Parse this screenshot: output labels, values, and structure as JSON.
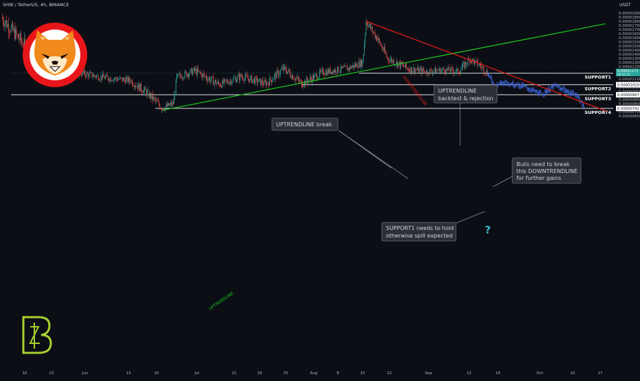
{
  "header": {
    "symbol": "SHIB / TetherUS, 4h, BINANCE",
    "currency": "USDT"
  },
  "colors": {
    "background": "#0c0e15",
    "candle_up": "#26a69a",
    "candle_down": "#ef5350",
    "uptrend": "#19c21c",
    "downtrend": "#e21b1b",
    "support": "#e6e6e6",
    "projection": "#3a5fcf",
    "question": "#3fb6c8",
    "logo_lime": "#a8d22e"
  },
  "chart_data": {
    "type": "candlestick",
    "title": "SHIB / TetherUS, 4h, BINANCE",
    "y_unit": "USDT",
    "ylim": [
      6.1e-06,
      1.93e-05
    ],
    "x_ticks": [
      "16",
      "23",
      "Jun",
      "13",
      "20",
      "Jul",
      "11",
      "18",
      "25",
      "Aug",
      "8",
      "15",
      "22",
      "Sep",
      "12",
      "19",
      "Oct",
      "10",
      "17"
    ],
    "y_ticks": [
      "0.00001900",
      "0.00001850",
      "0.00001800",
      "0.00001750",
      "0.00001700",
      "0.00001650",
      "0.00001600",
      "0.00001550",
      "0.00001500",
      "0.00001450",
      "0.00001400",
      "0.00001350",
      "0.00001300",
      "0.00001250",
      "0.00001200",
      "0.00001150",
      "0.00001100",
      "0.00001050",
      "0.00001000",
      "0.00000950",
      "0.00000900",
      "0.00000850",
      "0.00000800",
      "0.00000750",
      "0.00000700",
      "0.00000650"
    ],
    "last_price": {
      "close": "0.00001173",
      "badge_mid": "00:25:35",
      "low_label": "0.00001169"
    },
    "anchors": [
      {
        "date": "May 13",
        "price": 1.85e-05
      },
      {
        "date": "May 18",
        "price": 1.1e-05
      },
      {
        "date": "May 25",
        "price": 1.18e-05
      },
      {
        "date": "Jun 1",
        "price": 1.12e-05
      },
      {
        "date": "Jun 9",
        "price": 1.08e-05
      },
      {
        "date": "Jun 14",
        "price": 9.2e-06
      },
      {
        "date": "Jun 18",
        "price": 7.4e-06
      },
      {
        "date": "Jun 21",
        "price": 8e-06
      },
      {
        "date": "Jun 22",
        "price": 1.12e-05
      },
      {
        "date": "Jun 27",
        "price": 1.2e-05
      },
      {
        "date": "Jul 4",
        "price": 1.03e-05
      },
      {
        "date": "Jul 10",
        "price": 1.13e-05
      },
      {
        "date": "Jul 17",
        "price": 1.04e-05
      },
      {
        "date": "Jul 22",
        "price": 1.23e-05
      },
      {
        "date": "Jul 27",
        "price": 1.04e-05
      },
      {
        "date": "Aug 2",
        "price": 1.18e-05
      },
      {
        "date": "Aug 9",
        "price": 1.23e-05
      },
      {
        "date": "Aug 13",
        "price": 1.3e-05
      },
      {
        "date": "Aug 14",
        "price": 1.8e-05
      },
      {
        "date": "Aug 17",
        "price": 1.6e-05
      },
      {
        "date": "Aug 20",
        "price": 1.35e-05
      },
      {
        "date": "Aug 26",
        "price": 1.22e-05
      },
      {
        "date": "Aug 31",
        "price": 1.19e-05
      },
      {
        "date": "Sep 5",
        "price": 1.21e-05
      },
      {
        "date": "Sep 9",
        "price": 1.19e-05
      },
      {
        "date": "Sep 12",
        "price": 1.34e-05
      },
      {
        "date": "Sep 15",
        "price": 1.26e-05
      },
      {
        "date": "Sep 17",
        "price": 1.17e-05
      }
    ],
    "projection": [
      {
        "date": "Sep 17",
        "price": 1.17e-05
      },
      {
        "date": "Sep 19",
        "price": 1.02e-05
      },
      {
        "date": "Sep 22",
        "price": 1.06e-05
      },
      {
        "date": "Sep 27",
        "price": 1.01e-05
      },
      {
        "date": "Oct 2",
        "price": 9.1e-06
      },
      {
        "date": "Oct 6",
        "price": 1.02e-05
      },
      {
        "date": "Oct 10",
        "price": 9.3e-06
      },
      {
        "date": "Oct 12",
        "price": 9.1e-06
      },
      {
        "date": "Oct 14",
        "price": 7.5e-06
      }
    ],
    "support_levels": [
      {
        "name": "SUPPORT1",
        "price": 1.169e-05,
        "price_label": "0.00001169",
        "start_date": "Aug 12"
      },
      {
        "name": "SUPPORT2",
        "price": 1.029e-05,
        "price_label": "0.00001029",
        "start_date": "Jul 27"
      },
      {
        "name": "SUPPORT3",
        "price": 9.07e-06,
        "price_label": "0.00000907",
        "start_date": "May 13"
      },
      {
        "name": "SUPPORT4",
        "price": 7.42e-06,
        "price_label": "0.00000742",
        "start_date": "Jun 16"
      }
    ],
    "trendlines": [
      {
        "name": "UPTRENDLINE",
        "from": {
          "date": "Jun 18",
          "price": 7.2e-06
        },
        "to": {
          "date": "Oct 20",
          "price": 1.77e-05
        }
      },
      {
        "name": "DOWNTRENDLINE",
        "from": {
          "date": "Aug 14",
          "price": 1.8e-05
        },
        "to": {
          "date": "Oct 17",
          "price": 7.4e-06
        }
      }
    ]
  },
  "annotations": {
    "uptrend_break": "UPTRENDLINE break",
    "backtest_line1": "UPTRENDLINE",
    "backtest_line2": "backtest & rejection",
    "bulls_line1": "Bulls need to break",
    "bulls_line2": "this DOWNTRENDLINE",
    "bulls_line3": "for further gains",
    "support1_line1": "SUPPORT1 needs to hold",
    "support1_line2": "otherwise spill expected",
    "question": "?"
  },
  "logos": {
    "shib_icon": "shiba-inu-coin-logo",
    "author_icon": "author-monogram-logo"
  }
}
